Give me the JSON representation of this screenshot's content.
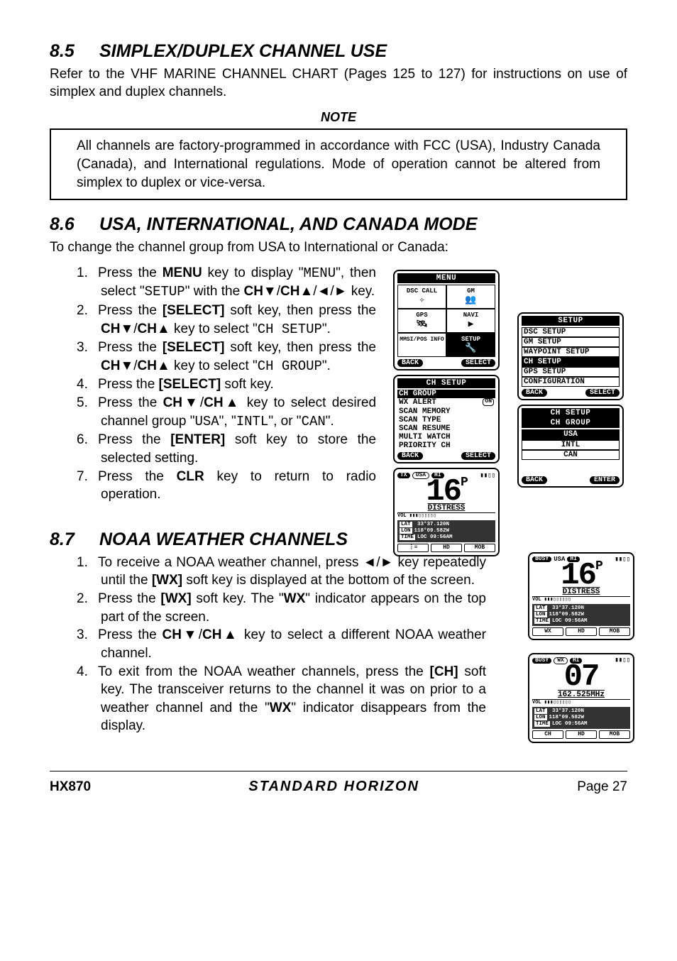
{
  "section85": {
    "number": "8.5",
    "title": "SIMPLEX/DUPLEX CHANNEL USE",
    "body": "Refer to the VHF MARINE CHANNEL CHART (Pages 125 to 127) for instructions on use of simplex and duplex channels.",
    "note_label": "NOTE",
    "note_body": "All channels are factory-programmed in accordance with FCC (USA), Industry Canada (Canada), and International regulations. Mode of operation cannot be altered from simplex to duplex or vice-versa."
  },
  "section86": {
    "number": "8.6",
    "title": "USA, INTERNATIONAL, AND CANADA MODE",
    "intro": "To change the channel group from USA to International or Canada:",
    "steps": [
      {
        "pre": "Press the ",
        "b1": "MENU",
        "mid1": " key to display \"",
        "m1": "MENU",
        "mid2": "\", then select \"",
        "m2": "SETUP",
        "mid3": "\" with the ",
        "b2": "CH▼",
        "sep": "/",
        "b3": "CH▲",
        "sep2": "/",
        "b4": "◄",
        "sep3": "/",
        "b5": "►",
        "post": " key."
      },
      {
        "pre": "Press the ",
        "b1": "[SELECT]",
        "mid1": " soft key, then press the ",
        "b2": "CH▼",
        "sep": "/",
        "b3": "CH▲",
        "mid2": " key to select \"",
        "m1": "CH SETUP",
        "post": "\"."
      },
      {
        "pre": "Press the ",
        "b1": "[SELECT]",
        "mid1": " soft key, then press the ",
        "b2": "CH▼",
        "sep": "/",
        "b3": "CH▲",
        "mid2": " key to select \"",
        "m1": "CH GROUP",
        "post": "\"."
      },
      {
        "pre": "Press the ",
        "b1": "[SELECT]",
        "post": " soft key."
      },
      {
        "pre": "Press the ",
        "b1": "CH▼",
        "sep": "/",
        "b2": "CH▲",
        "mid1": " key to select desired channel group \"",
        "m1": "USA",
        "mid2": "\", \"",
        "m2": "INTL",
        "mid3": "\", or \"",
        "m3": "CAN",
        "post": "\"."
      },
      {
        "pre": "Press the ",
        "b1": "[ENTER]",
        "post": " soft key to store the selected setting."
      },
      {
        "pre": "Press the ",
        "b1": "CLR",
        "post": " key to return to radio operation."
      }
    ],
    "menu_screen": {
      "header": "MENU",
      "cells": [
        "DSC CALL",
        "GM",
        "GPS",
        "NAVI",
        "MMSI/POS INFO",
        "SETUP"
      ],
      "back": "BACK",
      "select": "SELECT"
    },
    "setup_screen": {
      "header": "SETUP",
      "items": [
        "DSC SETUP",
        "GM SETUP",
        "WAYPOINT SETUP",
        "CH SETUP",
        "GPS SETUP",
        "CONFIGURATION"
      ],
      "selected_index": 3,
      "back": "BACK",
      "select": "SELECT"
    },
    "chsetup_screen": {
      "header": "CH SETUP",
      "items": [
        "CH GROUP",
        "WX ALERT",
        "SCAN MEMORY",
        "SCAN TYPE",
        "SCAN RESUME",
        "MULTI WATCH",
        "PRIORITY CH"
      ],
      "wx_on": "ON",
      "selected_index": 0,
      "back": "BACK",
      "select": "SELECT"
    },
    "chgroup_screen": {
      "header": "CH SETUP",
      "sub": "CH GROUP",
      "items": [
        "USA",
        "INTL",
        "CAN"
      ],
      "selected_index": 0,
      "back": "BACK",
      "enter": "ENTER"
    },
    "radio_screen": {
      "tx": "TX",
      "usa": "USA",
      "hi": "HI",
      "channel": "16",
      "p": "P",
      "label": "DISTRESS",
      "vol": "VOL",
      "lat_l": "LAT",
      "lat": " 33°37.120N",
      "lon_l": "LON",
      "lon": "118°09.582W",
      "time_l": "TIME",
      "time": "LOC 09:56AM",
      "sk1": "⋮≡",
      "sk2": "HD",
      "sk3": "MOB"
    }
  },
  "section87": {
    "number": "8.7",
    "title": "NOAA WEATHER CHANNELS",
    "steps": [
      {
        "pre": "To receive a NOAA weather channel, press ",
        "b1": "◄",
        "sep": "/",
        "b2": "►",
        "mid1": " key repeatedly until the ",
        "b3": "[WX]",
        "post": " soft key is displayed at the bottom of the screen."
      },
      {
        "pre": "Press the ",
        "b1": "[WX]",
        "mid1": " soft key. The \"",
        "b2": "WX",
        "post": "\" indicator appears on the top part of the screen."
      },
      {
        "pre": "Press the ",
        "b1": "CH▼",
        "sep": "/",
        "b2": "CH▲",
        "post": " key to select a different NOAA weather channel."
      },
      {
        "pre": "To exit from the NOAA weather channels, press the ",
        "b1": "[CH]",
        "mid1": " soft key. The transceiver returns to the channel it was on prior to a weather channel and the \"",
        "b2": "WX",
        "post": "\" indicator disappears from the display."
      }
    ],
    "screen1": {
      "busy": "BUSY",
      "usa": "USA",
      "hi": "HI",
      "channel": "16",
      "p": "P",
      "label": "DISTRESS",
      "vol": "VOL",
      "lat_l": "LAT",
      "lat": " 33°37.120N",
      "lon_l": "LON",
      "lon": "118°09.582W",
      "time_l": "TIME",
      "time": "LOC 09:56AM",
      "sk1": "WX",
      "sk2": "HD",
      "sk3": "MOB"
    },
    "screen2": {
      "busy": "BUSY",
      "wx": "WX",
      "hi": "HI",
      "channel": "07",
      "freq": "162.525MHz",
      "vol": "VOL",
      "lat_l": "LAT",
      "lat": " 33°37.120N",
      "lon_l": "LON",
      "lon": "118°09.582W",
      "time_l": "TIME",
      "time": "LOC 09:56AM",
      "sk1": "CH",
      "sk2": "HD",
      "sk3": "MOB"
    }
  },
  "footer": {
    "model": "HX870",
    "brand": "STANDARD HORIZON",
    "page": "Page 27"
  }
}
